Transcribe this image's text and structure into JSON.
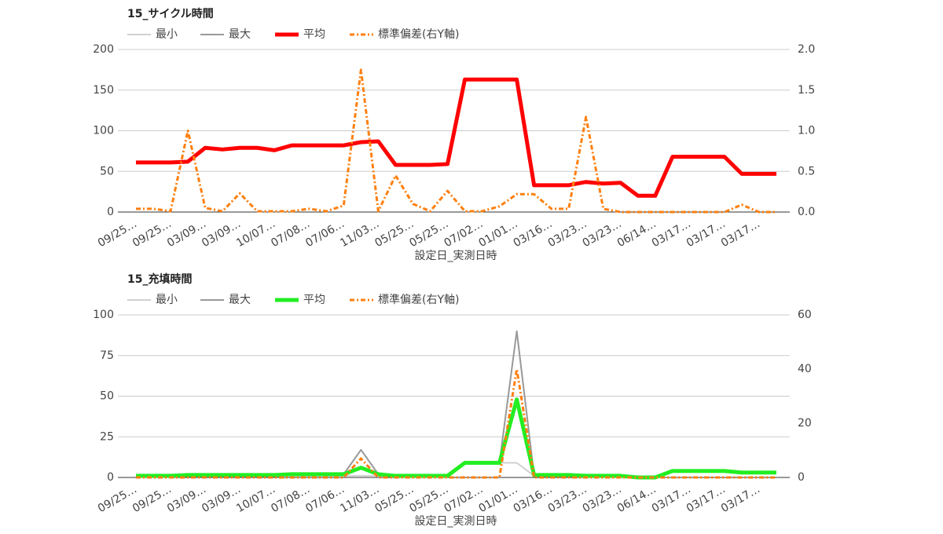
{
  "chart_data": [
    {
      "type": "line",
      "title": "15_サイクル時間",
      "x_label": "設定日_実測日時",
      "categories": [
        "09/25…",
        null,
        "09/25…",
        null,
        "03/09…",
        null,
        "03/09…",
        null,
        "10/07…",
        null,
        "07/08…",
        null,
        "07/06…",
        null,
        "11/03…",
        null,
        "05/25…",
        null,
        "05/25…",
        null,
        "07/02…",
        null,
        "01/01…",
        null,
        "03/16…",
        null,
        "03/23…",
        null,
        "03/23…",
        null,
        "06/14…",
        null,
        "03/17…",
        null,
        "03/17…",
        null,
        "03/17…",
        null
      ],
      "ylim": [
        0,
        200
      ],
      "yticks": [
        0,
        50,
        100,
        150,
        200
      ],
      "y2lim": [
        0,
        2
      ],
      "y2ticks": [
        {
          "value": 0,
          "label": "0.0"
        },
        {
          "value": 0.5,
          "label": "0.5"
        },
        {
          "value": 1,
          "label": "1.0"
        },
        {
          "value": 1.5,
          "label": "1.5"
        },
        {
          "value": 2,
          "label": "2.0"
        }
      ],
      "grid": true,
      "series": [
        {
          "name": "最小",
          "color": "#d0d0d0",
          "values": [
            61,
            61,
            61,
            62,
            79,
            77,
            79,
            79,
            76,
            82,
            82,
            82,
            82,
            86,
            87,
            58,
            58,
            58,
            59,
            163,
            163,
            163,
            163,
            33,
            33,
            33,
            37,
            35,
            36,
            20,
            20,
            68,
            68,
            68,
            68,
            47,
            47,
            47
          ]
        },
        {
          "name": "最大",
          "color": "#999999",
          "values": [
            61,
            61,
            61,
            62,
            79,
            77,
            79,
            79,
            76,
            82,
            82,
            82,
            82,
            86,
            87,
            58,
            58,
            58,
            59,
            163,
            163,
            163,
            163,
            33,
            33,
            33,
            37,
            35,
            36,
            20,
            20,
            68,
            68,
            68,
            68,
            47,
            47,
            47
          ]
        },
        {
          "name": "平均",
          "color": "#ff0000",
          "values": [
            61,
            61,
            61,
            62,
            79,
            77,
            79,
            79,
            76,
            82,
            82,
            82,
            82,
            86,
            87,
            58,
            58,
            58,
            59,
            163,
            163,
            163,
            163,
            33,
            33,
            33,
            37,
            35,
            36,
            20,
            20,
            68,
            68,
            68,
            68,
            47,
            47,
            47
          ]
        },
        {
          "name": "標準偏差(右Y軸)",
          "color": "#ff7f0e",
          "axis": "y2",
          "dashed": true,
          "values": [
            0.04,
            0.04,
            0.01,
            1.0,
            0.05,
            0.01,
            0.23,
            0.01,
            0.01,
            0.01,
            0.04,
            0.01,
            0.08,
            1.75,
            0.01,
            0.45,
            0.1,
            0.01,
            0.26,
            0.01,
            0.01,
            0.07,
            0.22,
            0.22,
            0.04,
            0.04,
            1.17,
            0.04,
            0,
            0,
            0,
            0,
            0,
            0,
            0,
            0.09,
            0,
            0
          ]
        }
      ]
    },
    {
      "type": "line",
      "title": "15_充填時間",
      "x_label": "設定日_実測日時",
      "categories": [
        "09/25…",
        null,
        "09/25…",
        null,
        "03/09…",
        null,
        "03/09…",
        null,
        "10/07…",
        null,
        "07/08…",
        null,
        "07/06…",
        null,
        "11/03…",
        null,
        "05/25…",
        null,
        "05/25…",
        null,
        "07/02…",
        null,
        "01/01…",
        null,
        "03/16…",
        null,
        "03/23…",
        null,
        "03/23…",
        null,
        "06/14…",
        null,
        "03/17…",
        null,
        "03/17…",
        null,
        "03/17…",
        null
      ],
      "ylim": [
        0,
        100
      ],
      "yticks": [
        0,
        25,
        50,
        75,
        100
      ],
      "y2lim": [
        0,
        60
      ],
      "y2ticks": [
        0,
        20,
        40,
        60
      ],
      "grid": true,
      "series": [
        {
          "name": "最小",
          "color": "#d0d0d0",
          "values": [
            1,
            1,
            1,
            1,
            1,
            1,
            1,
            1,
            1,
            1,
            1,
            1,
            1,
            1,
            1,
            1,
            1,
            1,
            1,
            9,
            9,
            9,
            9,
            1,
            1,
            1,
            1,
            1,
            1,
            0,
            0,
            4,
            4,
            4,
            4,
            3,
            3,
            3
          ]
        },
        {
          "name": "最大",
          "color": "#999999",
          "values": [
            1,
            1,
            1,
            1.5,
            1.5,
            1.5,
            1.5,
            1.5,
            1.5,
            2,
            2,
            2,
            2,
            17,
            2,
            1,
            1,
            1,
            1,
            9,
            9,
            9,
            90,
            1.5,
            1.5,
            1.5,
            1,
            1,
            1,
            0,
            0,
            4,
            4,
            4,
            4,
            3,
            3,
            3
          ]
        },
        {
          "name": "平均",
          "color": "#22ee22",
          "values": [
            1,
            1,
            1,
            1.5,
            1.5,
            1.5,
            1.5,
            1.5,
            1.5,
            2,
            2,
            2,
            2,
            6,
            2,
            1,
            1,
            1,
            1,
            9,
            9,
            9,
            48,
            1.5,
            1.5,
            1.5,
            1,
            1,
            1,
            0,
            0,
            4,
            4,
            4,
            4,
            3,
            3,
            3
          ]
        },
        {
          "name": "標準偏差(右Y軸)",
          "color": "#ff7f0e",
          "axis": "y2",
          "dashed": true,
          "values": [
            0,
            0,
            0,
            0,
            0,
            0,
            0,
            0,
            0,
            0,
            0,
            0,
            0,
            7,
            0,
            0,
            0,
            0,
            0,
            0,
            0,
            0,
            40,
            0,
            0,
            0,
            0,
            0,
            0,
            0,
            0,
            0,
            0,
            0,
            0,
            0,
            0,
            0
          ]
        }
      ]
    }
  ]
}
